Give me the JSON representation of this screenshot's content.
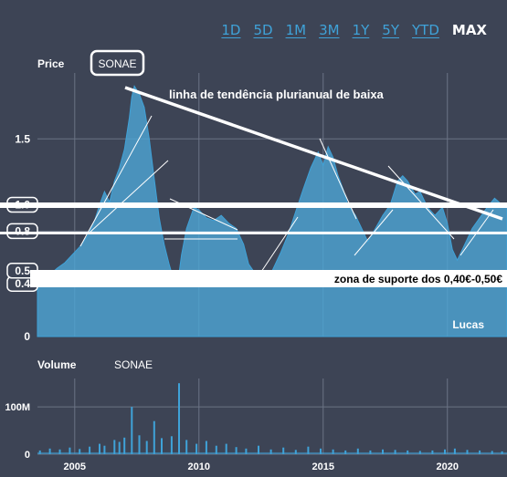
{
  "range_tabs": [
    {
      "label": "1D",
      "active": false
    },
    {
      "label": "5D",
      "active": false
    },
    {
      "label": "1M",
      "active": false
    },
    {
      "label": "3M",
      "active": false
    },
    {
      "label": "1Y",
      "active": false
    },
    {
      "label": "5Y",
      "active": false
    },
    {
      "label": "YTD",
      "active": false
    },
    {
      "label": "MAX",
      "active": true
    }
  ],
  "price_panel": {
    "label": "Price",
    "symbol": "SONAE"
  },
  "volume_panel": {
    "label": "Volume",
    "symbol": "SONAE"
  },
  "annotations": {
    "trendline_title": "linha de tendência plurianual de baixa",
    "support_zone": "zona de suporte dos 0,40€-0,50€",
    "author": "Lucas"
  },
  "colors": {
    "background": "#3d4455",
    "area": "#3fa2d8",
    "fill": "#4fa8d8",
    "annotation": "#ffffff"
  },
  "chart_data": [
    {
      "type": "area",
      "title": "",
      "ylabel": "Price",
      "ylim": [
        0,
        2.0
      ],
      "yticks": [
        {
          "v": 0,
          "label": "0",
          "boxed": false
        },
        {
          "v": 0.4,
          "label": "0.4",
          "boxed": true
        },
        {
          "v": 0.5,
          "label": "0.5",
          "boxed": true
        },
        {
          "v": 0.8,
          "label": "0.8",
          "boxed": true
        },
        {
          "v": 1.0,
          "label": "1.0",
          "boxed": true
        },
        {
          "v": 1.5,
          "label": "1.5",
          "boxed": false
        }
      ],
      "xlim": [
        2003.5,
        2022.4
      ],
      "xticks": [
        2005,
        2010,
        2015,
        2020
      ],
      "series": [
        {
          "points": [
            [
              2003.5,
              0.4
            ],
            [
              2003.8,
              0.44
            ],
            [
              2004.0,
              0.47
            ],
            [
              2004.3,
              0.52
            ],
            [
              2004.6,
              0.56
            ],
            [
              2004.9,
              0.62
            ],
            [
              2005.2,
              0.68
            ],
            [
              2005.5,
              0.76
            ],
            [
              2005.8,
              0.88
            ],
            [
              2006.0,
              1.0
            ],
            [
              2006.2,
              1.1
            ],
            [
              2006.4,
              1.02
            ],
            [
              2006.6,
              1.18
            ],
            [
              2006.8,
              1.28
            ],
            [
              2007.0,
              1.42
            ],
            [
              2007.2,
              1.66
            ],
            [
              2007.3,
              1.82
            ],
            [
              2007.4,
              1.9
            ],
            [
              2007.6,
              1.84
            ],
            [
              2007.8,
              1.74
            ],
            [
              2008.0,
              1.5
            ],
            [
              2008.2,
              1.2
            ],
            [
              2008.4,
              0.9
            ],
            [
              2008.6,
              0.7
            ],
            [
              2008.8,
              0.55
            ],
            [
              2009.0,
              0.42
            ],
            [
              2009.2,
              0.48
            ],
            [
              2009.3,
              0.62
            ],
            [
              2009.5,
              0.82
            ],
            [
              2009.8,
              0.98
            ],
            [
              2010.0,
              0.96
            ],
            [
              2010.3,
              0.9
            ],
            [
              2010.6,
              0.88
            ],
            [
              2010.9,
              0.92
            ],
            [
              2011.2,
              0.86
            ],
            [
              2011.5,
              0.82
            ],
            [
              2011.8,
              0.7
            ],
            [
              2012.0,
              0.55
            ],
            [
              2012.3,
              0.47
            ],
            [
              2012.5,
              0.4
            ],
            [
              2012.8,
              0.44
            ],
            [
              2013.0,
              0.52
            ],
            [
              2013.3,
              0.64
            ],
            [
              2013.6,
              0.78
            ],
            [
              2013.9,
              0.95
            ],
            [
              2014.2,
              1.12
            ],
            [
              2014.5,
              1.28
            ],
            [
              2014.8,
              1.4
            ],
            [
              2015.0,
              1.3
            ],
            [
              2015.2,
              1.44
            ],
            [
              2015.4,
              1.36
            ],
            [
              2015.6,
              1.22
            ],
            [
              2015.8,
              1.12
            ],
            [
              2016.0,
              1.0
            ],
            [
              2016.3,
              0.92
            ],
            [
              2016.6,
              0.8
            ],
            [
              2016.8,
              0.72
            ],
            [
              2017.1,
              0.82
            ],
            [
              2017.4,
              0.92
            ],
            [
              2017.7,
              1.0
            ],
            [
              2018.0,
              1.18
            ],
            [
              2018.2,
              1.22
            ],
            [
              2018.4,
              1.18
            ],
            [
              2018.7,
              1.08
            ],
            [
              2018.9,
              1.1
            ],
            [
              2019.2,
              0.98
            ],
            [
              2019.5,
              0.92
            ],
            [
              2019.8,
              0.98
            ],
            [
              2020.0,
              0.86
            ],
            [
              2020.2,
              0.66
            ],
            [
              2020.4,
              0.58
            ],
            [
              2020.7,
              0.7
            ],
            [
              2021.0,
              0.82
            ],
            [
              2021.3,
              0.9
            ],
            [
              2021.6,
              0.98
            ],
            [
              2021.9,
              1.05
            ],
            [
              2022.2,
              1.0
            ],
            [
              2022.4,
              0.98
            ]
          ]
        }
      ]
    },
    {
      "type": "bar",
      "title": "",
      "ylabel": "Volume",
      "ylim": [
        0,
        160
      ],
      "yticks": [
        {
          "v": 0,
          "label": "0"
        },
        {
          "v": 100,
          "label": "100M"
        }
      ],
      "xlim": [
        2003.5,
        2022.4
      ],
      "xticks": [
        2005,
        2010,
        2015,
        2020
      ],
      "series": [
        {
          "unit": "M",
          "points": [
            [
              2003.6,
              8
            ],
            [
              2004.0,
              12
            ],
            [
              2004.4,
              10
            ],
            [
              2004.8,
              14
            ],
            [
              2005.2,
              11
            ],
            [
              2005.6,
              16
            ],
            [
              2006.0,
              22
            ],
            [
              2006.2,
              18
            ],
            [
              2006.6,
              30
            ],
            [
              2006.8,
              26
            ],
            [
              2007.0,
              35
            ],
            [
              2007.3,
              100
            ],
            [
              2007.6,
              40
            ],
            [
              2007.9,
              28
            ],
            [
              2008.2,
              70
            ],
            [
              2008.5,
              34
            ],
            [
              2008.9,
              38
            ],
            [
              2009.2,
              150
            ],
            [
              2009.5,
              30
            ],
            [
              2009.9,
              22
            ],
            [
              2010.3,
              28
            ],
            [
              2010.7,
              18
            ],
            [
              2011.1,
              22
            ],
            [
              2011.5,
              15
            ],
            [
              2011.9,
              12
            ],
            [
              2012.4,
              18
            ],
            [
              2012.9,
              10
            ],
            [
              2013.4,
              14
            ],
            [
              2013.9,
              9
            ],
            [
              2014.4,
              16
            ],
            [
              2014.9,
              12
            ],
            [
              2015.4,
              10
            ],
            [
              2015.9,
              8
            ],
            [
              2016.4,
              12
            ],
            [
              2016.9,
              8
            ],
            [
              2017.4,
              10
            ],
            [
              2017.9,
              9
            ],
            [
              2018.4,
              8
            ],
            [
              2018.9,
              7
            ],
            [
              2019.4,
              8
            ],
            [
              2019.9,
              10
            ],
            [
              2020.3,
              12
            ],
            [
              2020.8,
              9
            ],
            [
              2021.3,
              8
            ],
            [
              2021.8,
              7
            ],
            [
              2022.2,
              6
            ]
          ]
        }
      ]
    }
  ]
}
